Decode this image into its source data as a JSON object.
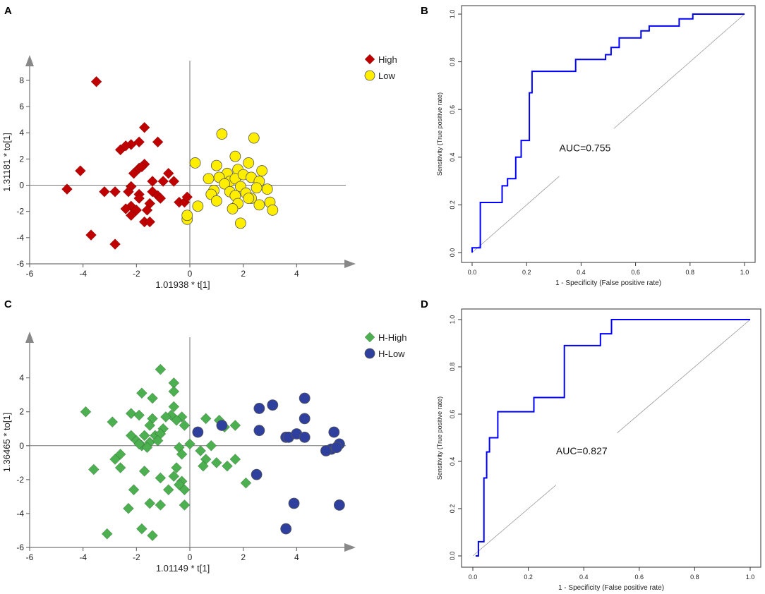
{
  "chart_data": [
    {
      "panel": "A",
      "type": "scatter",
      "xlabel": "1.01938 * t[1]",
      "ylabel": "1.31181 * to[1]",
      "xlim": [
        -6,
        6
      ],
      "ylim": [
        -6,
        9.5
      ],
      "xticks": [
        -6,
        -4,
        -2,
        0,
        2,
        4
      ],
      "yticks": [
        -6,
        -4,
        -2,
        0,
        2,
        4,
        6,
        8
      ],
      "grid": false,
      "legend_position": "top-right",
      "series": [
        {
          "name": "High",
          "marker": "diamond",
          "color": "#c00000",
          "points": [
            [
              -3.5,
              7.9
            ],
            [
              -1.7,
              4.4
            ],
            [
              -2.6,
              2.7
            ],
            [
              -2.2,
              3.1
            ],
            [
              -1.9,
              3.3
            ],
            [
              -2.4,
              3.0
            ],
            [
              -1.2,
              3.3
            ],
            [
              -4.1,
              1.1
            ],
            [
              -2.1,
              0.9
            ],
            [
              -1.9,
              1.3
            ],
            [
              -1.7,
              1.6
            ],
            [
              -1.8,
              1.4
            ],
            [
              -0.8,
              0.9
            ],
            [
              -1.4,
              0.3
            ],
            [
              -1.0,
              0.3
            ],
            [
              -2.2,
              -0.1
            ],
            [
              -2.3,
              -0.5
            ],
            [
              -2.8,
              -0.5
            ],
            [
              -3.2,
              -0.5
            ],
            [
              -1.9,
              -0.7
            ],
            [
              -1.4,
              -0.5
            ],
            [
              -1.2,
              -0.8
            ],
            [
              -1.1,
              -1.0
            ],
            [
              -4.6,
              -0.3
            ],
            [
              -1.5,
              -1.4
            ],
            [
              -2.2,
              -1.6
            ],
            [
              -2.4,
              -1.8
            ],
            [
              -1.6,
              -1.9
            ],
            [
              -2.2,
              -2.3
            ],
            [
              -1.7,
              -2.8
            ],
            [
              -1.5,
              -2.8
            ],
            [
              -0.4,
              -1.3
            ],
            [
              -0.2,
              -1.3
            ],
            [
              -0.6,
              0.3
            ],
            [
              -0.1,
              -0.9
            ],
            [
              -3.7,
              -3.8
            ],
            [
              -2.8,
              -4.5
            ],
            [
              -1.9,
              -1.0
            ],
            [
              -2.0,
              -1.9
            ]
          ]
        },
        {
          "name": "Low",
          "marker": "circle",
          "color": "#ffee00",
          "points": [
            [
              1.2,
              3.9
            ],
            [
              2.4,
              3.6
            ],
            [
              0.2,
              1.7
            ],
            [
              1.7,
              2.2
            ],
            [
              2.2,
              1.7
            ],
            [
              1.0,
              1.5
            ],
            [
              1.8,
              1.2
            ],
            [
              2.7,
              1.1
            ],
            [
              1.4,
              0.9
            ],
            [
              0.7,
              0.5
            ],
            [
              1.1,
              0.6
            ],
            [
              1.5,
              0.3
            ],
            [
              1.7,
              0.5
            ],
            [
              2.0,
              0.8
            ],
            [
              2.3,
              0.6
            ],
            [
              2.6,
              0.3
            ],
            [
              1.3,
              0.1
            ],
            [
              1.9,
              -0.1
            ],
            [
              2.5,
              -0.2
            ],
            [
              0.9,
              -0.4
            ],
            [
              1.5,
              -0.5
            ],
            [
              2.1,
              -0.6
            ],
            [
              2.9,
              -0.3
            ],
            [
              0.8,
              -0.7
            ],
            [
              1.7,
              -0.8
            ],
            [
              2.3,
              -1.0
            ],
            [
              1.0,
              -1.2
            ],
            [
              3.0,
              -1.3
            ],
            [
              0.3,
              -1.6
            ],
            [
              1.8,
              -1.4
            ],
            [
              2.6,
              -1.5
            ],
            [
              1.6,
              -1.8
            ],
            [
              3.1,
              -1.9
            ],
            [
              -0.1,
              -2.6
            ],
            [
              -0.1,
              -2.3
            ],
            [
              1.9,
              -2.9
            ],
            [
              2.2,
              -1.0
            ]
          ]
        }
      ]
    },
    {
      "panel": "B",
      "type": "line",
      "xlabel": "1 - Specificity (False positive rate)",
      "ylabel": "Sensitivity (True positive rate)",
      "xlim": [
        0,
        1
      ],
      "ylim": [
        0,
        1
      ],
      "xticks": [
        0.0,
        0.2,
        0.4,
        0.6,
        0.8,
        1.0
      ],
      "yticks": [
        0.0,
        0.2,
        0.4,
        0.6,
        0.8,
        1.0
      ],
      "xtick_labels": [
        "0.0",
        "0.2",
        "0.4",
        "0.6",
        "0.8",
        "1.0"
      ],
      "ytick_labels": [
        "0.0",
        "0.2",
        "0.4",
        "0.6",
        "0.8",
        "1.0"
      ],
      "annotation": "AUC=0.755",
      "series": [
        {
          "name": "ROC",
          "color": "#0000ff",
          "x": [
            0.0,
            0.0,
            0.01,
            0.01,
            0.03,
            0.03,
            0.11,
            0.11,
            0.13,
            0.13,
            0.16,
            0.16,
            0.18,
            0.18,
            0.21,
            0.21,
            0.22,
            0.22,
            0.25,
            0.25,
            0.38,
            0.38,
            0.49,
            0.49,
            0.51,
            0.51,
            0.54,
            0.54,
            0.62,
            0.62,
            0.65,
            0.65,
            0.76,
            0.76,
            0.81,
            0.81,
            1.0
          ],
          "y": [
            0.0,
            0.02,
            0.02,
            0.02,
            0.02,
            0.21,
            0.21,
            0.28,
            0.28,
            0.31,
            0.31,
            0.4,
            0.4,
            0.47,
            0.47,
            0.67,
            0.67,
            0.76,
            0.76,
            0.76,
            0.76,
            0.81,
            0.81,
            0.83,
            0.83,
            0.86,
            0.86,
            0.9,
            0.9,
            0.93,
            0.93,
            0.95,
            0.95,
            0.98,
            0.98,
            1.0,
            1.0
          ]
        }
      ]
    },
    {
      "panel": "C",
      "type": "scatter",
      "xlabel": "1.01149 * t[1]",
      "ylabel": "1.36465 * to[1]",
      "xlim": [
        -6,
        6
      ],
      "ylim": [
        -6,
        6.4
      ],
      "xticks": [
        -6,
        -4,
        -2,
        0,
        2,
        4
      ],
      "yticks": [
        -6,
        -4,
        -2,
        0,
        2,
        4
      ],
      "grid": false,
      "legend_position": "top-right",
      "series": [
        {
          "name": "H-High",
          "marker": "diamond",
          "color": "#4caf50",
          "points": [
            [
              -1.1,
              4.5
            ],
            [
              -0.6,
              3.7
            ],
            [
              -0.6,
              3.2
            ],
            [
              -1.8,
              3.1
            ],
            [
              -1.4,
              2.8
            ],
            [
              -2.2,
              1.9
            ],
            [
              -1.9,
              1.8
            ],
            [
              -0.6,
              2.3
            ],
            [
              -0.7,
              1.8
            ],
            [
              -0.3,
              1.7
            ],
            [
              -3.9,
              2.0
            ],
            [
              -2.9,
              1.4
            ],
            [
              -0.9,
              1.7
            ],
            [
              -0.5,
              1.5
            ],
            [
              -1.4,
              1.6
            ],
            [
              -1.5,
              1.2
            ],
            [
              -1.0,
              1.0
            ],
            [
              -0.2,
              1.2
            ],
            [
              0.6,
              1.6
            ],
            [
              1.1,
              1.5
            ],
            [
              1.7,
              1.2
            ],
            [
              1.3,
              1.1
            ],
            [
              -2.2,
              0.6
            ],
            [
              -2.0,
              0.3
            ],
            [
              -1.7,
              0.6
            ],
            [
              -1.3,
              0.6
            ],
            [
              -1.1,
              0.7
            ],
            [
              -1.8,
              0.0
            ],
            [
              -1.5,
              0.2
            ],
            [
              -1.9,
              0.1
            ],
            [
              -1.6,
              -0.1
            ],
            [
              -1.2,
              0.3
            ],
            [
              -2.6,
              -0.5
            ],
            [
              -2.8,
              -0.8
            ],
            [
              -0.4,
              -0.1
            ],
            [
              -0.3,
              -0.5
            ],
            [
              0.4,
              -0.3
            ],
            [
              0.8,
              0.0
            ],
            [
              0.6,
              -0.8
            ],
            [
              1.0,
              -1.0
            ],
            [
              0.5,
              -1.2
            ],
            [
              1.4,
              -1.2
            ],
            [
              1.7,
              -0.8
            ],
            [
              -3.6,
              -1.4
            ],
            [
              -2.6,
              -1.3
            ],
            [
              -1.7,
              -1.5
            ],
            [
              -0.5,
              -1.3
            ],
            [
              -0.6,
              -1.8
            ],
            [
              -0.3,
              -2.1
            ],
            [
              -0.4,
              -2.3
            ],
            [
              -1.1,
              -1.9
            ],
            [
              -0.8,
              -2.6
            ],
            [
              -0.2,
              -2.6
            ],
            [
              2.1,
              -2.2
            ],
            [
              -2.1,
              -2.6
            ],
            [
              -2.3,
              -3.7
            ],
            [
              -1.1,
              -3.5
            ],
            [
              -1.5,
              -3.4
            ],
            [
              -0.2,
              -3.5
            ],
            [
              -1.8,
              -4.9
            ],
            [
              -3.1,
              -5.2
            ],
            [
              -1.4,
              -5.3
            ],
            [
              0.0,
              0.1
            ]
          ]
        },
        {
          "name": "H-Low",
          "marker": "circle",
          "color": "#2e3f9e",
          "points": [
            [
              4.3,
              2.8
            ],
            [
              3.1,
              2.4
            ],
            [
              2.6,
              2.2
            ],
            [
              4.3,
              1.6
            ],
            [
              1.2,
              1.2
            ],
            [
              0.3,
              0.8
            ],
            [
              2.6,
              0.9
            ],
            [
              3.6,
              0.5
            ],
            [
              3.7,
              0.5
            ],
            [
              4.0,
              0.7
            ],
            [
              4.3,
              0.5
            ],
            [
              5.4,
              0.8
            ],
            [
              5.6,
              0.1
            ],
            [
              5.3,
              -0.2
            ],
            [
              5.5,
              -0.1
            ],
            [
              5.1,
              -0.3
            ],
            [
              2.5,
              -1.7
            ],
            [
              3.9,
              -3.4
            ],
            [
              5.6,
              -3.5
            ],
            [
              3.6,
              -4.9
            ]
          ]
        }
      ]
    },
    {
      "panel": "D",
      "type": "line",
      "xlabel": "1 - Specificity (False positive rate)",
      "ylabel": "Sensitivity (True positive rate)",
      "xlim": [
        0,
        1
      ],
      "ylim": [
        0,
        1
      ],
      "xticks": [
        0.0,
        0.2,
        0.4,
        0.6,
        0.8,
        1.0
      ],
      "yticks": [
        0.0,
        0.2,
        0.4,
        0.6,
        0.8,
        1.0
      ],
      "xtick_labels": [
        "0.0",
        "0.2",
        "0.4",
        "0.6",
        "0.8",
        "1.0"
      ],
      "ytick_labels": [
        "0.0",
        "0.2",
        "0.4",
        "0.6",
        "0.8",
        "1.0"
      ],
      "annotation": "AUC=0.827",
      "series": [
        {
          "name": "ROC",
          "color": "#0000ff",
          "x": [
            0.01,
            0.01,
            0.02,
            0.02,
            0.04,
            0.04,
            0.05,
            0.05,
            0.06,
            0.06,
            0.07,
            0.07,
            0.09,
            0.09,
            0.22,
            0.22,
            0.33,
            0.33,
            0.46,
            0.46,
            0.5,
            0.5,
            1.0
          ],
          "y": [
            0.0,
            0.0,
            0.0,
            0.06,
            0.06,
            0.33,
            0.33,
            0.44,
            0.44,
            0.5,
            0.5,
            0.5,
            0.5,
            0.61,
            0.61,
            0.67,
            0.67,
            0.89,
            0.89,
            0.94,
            0.94,
            1.0,
            1.0
          ]
        }
      ]
    }
  ],
  "panels": [
    {
      "label": "A"
    },
    {
      "label": "B"
    },
    {
      "label": "C"
    },
    {
      "label": "D"
    }
  ]
}
